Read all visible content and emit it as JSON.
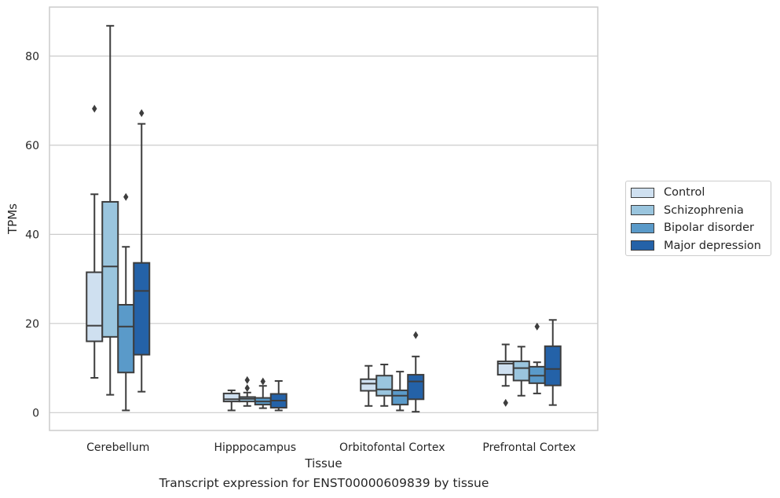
{
  "caption": "Transcript expression for ENST00000609839 by tissue",
  "chart_data": {
    "type": "box",
    "xlabel": "Tissue",
    "ylabel": "TPMs",
    "ylim": [
      -4,
      91
    ],
    "yticks": [
      0,
      20,
      40,
      60,
      80
    ],
    "grid": "horizontal",
    "legend_position": "right",
    "categories": [
      "Cerebellum",
      "Hipppocampus",
      "Orbitofontal Cortex",
      "Prefrontal Cortex"
    ],
    "series": [
      {
        "name": "Control",
        "color": "#cfe0f0",
        "boxes": [
          {
            "whislo": 7.8,
            "q1": 16,
            "med": 19.5,
            "q3": 31.5,
            "whishi": 49,
            "fliers": [
              68.2
            ]
          },
          {
            "whislo": 0.5,
            "q1": 2.5,
            "med": 3,
            "q3": 4.3,
            "whishi": 5,
            "fliers": []
          },
          {
            "whislo": 1.5,
            "q1": 4.9,
            "med": 6.5,
            "q3": 7.5,
            "whishi": 10.5,
            "fliers": []
          },
          {
            "whislo": 6,
            "q1": 8.5,
            "med": 11,
            "q3": 11.5,
            "whishi": 15.3,
            "fliers": [
              2.2
            ]
          }
        ]
      },
      {
        "name": "Schizophrenia",
        "color": "#9ac5de",
        "boxes": [
          {
            "whislo": 4,
            "q1": 17,
            "med": 32.8,
            "q3": 47.3,
            "whishi": 86.8,
            "fliers": []
          },
          {
            "whislo": 1.5,
            "q1": 2.5,
            "med": 3.1,
            "q3": 3.5,
            "whishi": 4.5,
            "fliers": [
              5.5,
              7.3
            ]
          },
          {
            "whislo": 1.5,
            "q1": 3.8,
            "med": 5.2,
            "q3": 8.3,
            "whishi": 10.8,
            "fliers": []
          },
          {
            "whislo": 3.8,
            "q1": 7.2,
            "med": 10,
            "q3": 11.5,
            "whishi": 14.8,
            "fliers": []
          }
        ]
      },
      {
        "name": "Bipolar disorder",
        "color": "#5a9ac9",
        "boxes": [
          {
            "whislo": 0.5,
            "q1": 9,
            "med": 19.3,
            "q3": 24.2,
            "whishi": 37.2,
            "fliers": [
              48.4
            ]
          },
          {
            "whislo": 1,
            "q1": 1.8,
            "med": 2.5,
            "q3": 3.3,
            "whishi": 6,
            "fliers": [
              7
            ]
          },
          {
            "whislo": 0.5,
            "q1": 1.8,
            "med": 3.8,
            "q3": 5,
            "whishi": 9.2,
            "fliers": []
          },
          {
            "whislo": 4.3,
            "q1": 6.6,
            "med": 8.3,
            "q3": 10.3,
            "whishi": 11.3,
            "fliers": [
              19.3
            ]
          }
        ]
      },
      {
        "name": "Major depression",
        "color": "#2462a8",
        "boxes": [
          {
            "whislo": 4.7,
            "q1": 13,
            "med": 27.3,
            "q3": 33.6,
            "whishi": 64.8,
            "fliers": [
              67.2
            ]
          },
          {
            "whislo": 0.5,
            "q1": 1.1,
            "med": 2.7,
            "q3": 4.2,
            "whishi": 7.1,
            "fliers": []
          },
          {
            "whislo": 0.2,
            "q1": 3,
            "med": 7,
            "q3": 8.5,
            "whishi": 12.6,
            "fliers": [
              17.4
            ]
          },
          {
            "whislo": 1.7,
            "q1": 6.1,
            "med": 9.8,
            "q3": 14.9,
            "whishi": 20.8,
            "fliers": []
          }
        ]
      }
    ]
  }
}
